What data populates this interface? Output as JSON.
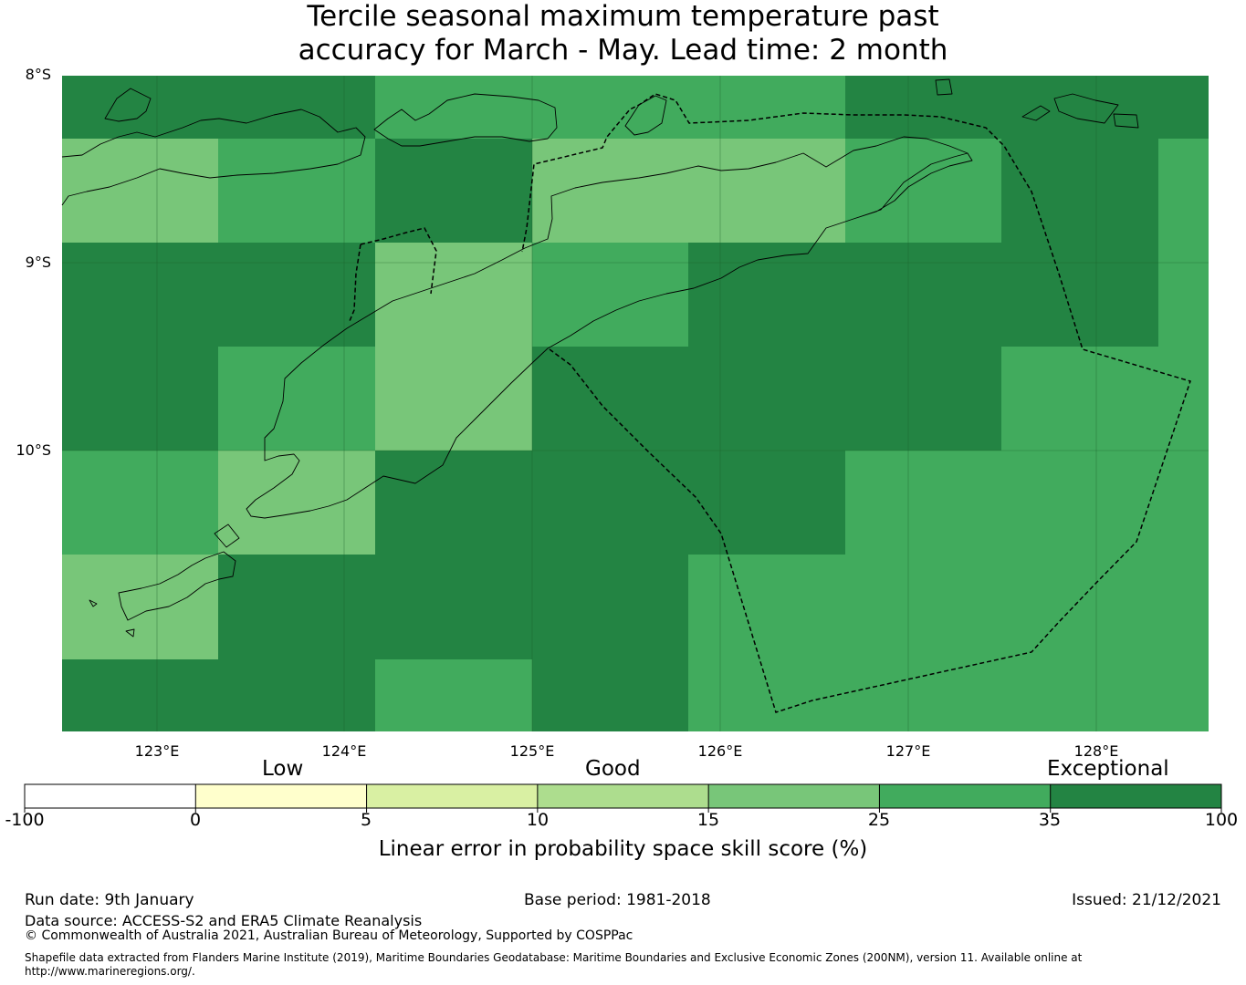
{
  "title": {
    "line1": "Tercile seasonal maximum temperature past",
    "line2": "accuracy for March - May. Lead time: 2 month"
  },
  "map": {
    "latitude_labels": [
      "8°S",
      "9°S",
      "10°S"
    ],
    "longitude_labels": [
      "123°E",
      "124°E",
      "125°E",
      "126°E",
      "127°E",
      "128°E"
    ],
    "grid_legend_classes": [
      "25-35",
      "35-100",
      "15-25"
    ],
    "grid_cells": [
      [
        "35-100",
        "35-100",
        "25-35",
        "25-35",
        "25-35",
        "35-100",
        "35-100",
        "35-100"
      ],
      [
        "15-25",
        "25-35",
        "35-100",
        "15-25",
        "15-25",
        "25-35",
        "35-100",
        "25-35"
      ],
      [
        "35-100",
        "35-100",
        "15-25",
        "25-35",
        "35-100",
        "35-100",
        "35-100",
        "25-35"
      ],
      [
        "35-100",
        "25-35",
        "15-25",
        "35-100",
        "35-100",
        "35-100",
        "25-35",
        "25-35"
      ],
      [
        "25-35",
        "15-25",
        "35-100",
        "35-100",
        "35-100",
        "25-35",
        "25-35",
        "25-35"
      ],
      [
        "15-25",
        "35-100",
        "35-100",
        "35-100",
        "25-35",
        "25-35",
        "25-35",
        "25-35"
      ],
      [
        "35-100",
        "35-100",
        "25-35",
        "35-100",
        "25-35",
        "25-35",
        "25-35",
        "25-35"
      ]
    ]
  },
  "legend": {
    "category_labels": [
      "Low",
      "Good",
      "Exceptional"
    ],
    "ticks": [
      "-100",
      "0",
      "5",
      "10",
      "15",
      "25",
      "35",
      "100"
    ],
    "colors": [
      "#ffffff",
      "#ffffcc",
      "#d9f0a3",
      "#addd8e",
      "#78c679",
      "#41ab5d",
      "#238443"
    ],
    "axis_title": "Linear error in probability space skill score (%)"
  },
  "footer": {
    "run_date": "Run date: 9th January",
    "base_period": "Base period: 1981-2018",
    "issued": "Issued: 21/12/2021",
    "data_source": "Data source: ACCESS-S2 and ERA5 Climate Reanalysis",
    "copyright": "© Commonwealth of Australia 2021, Australian Bureau of Meteorology, Supported by COSPPac",
    "shapefile_line1": "Shapefile data extracted from Flanders Marine Institute (2019), Maritime Boundaries Geodatabase: Maritime Boundaries and Exclusive Economic Zones (200NM), version 11. Available online at",
    "shapefile_line2": "http://www.marineregions.org/."
  }
}
